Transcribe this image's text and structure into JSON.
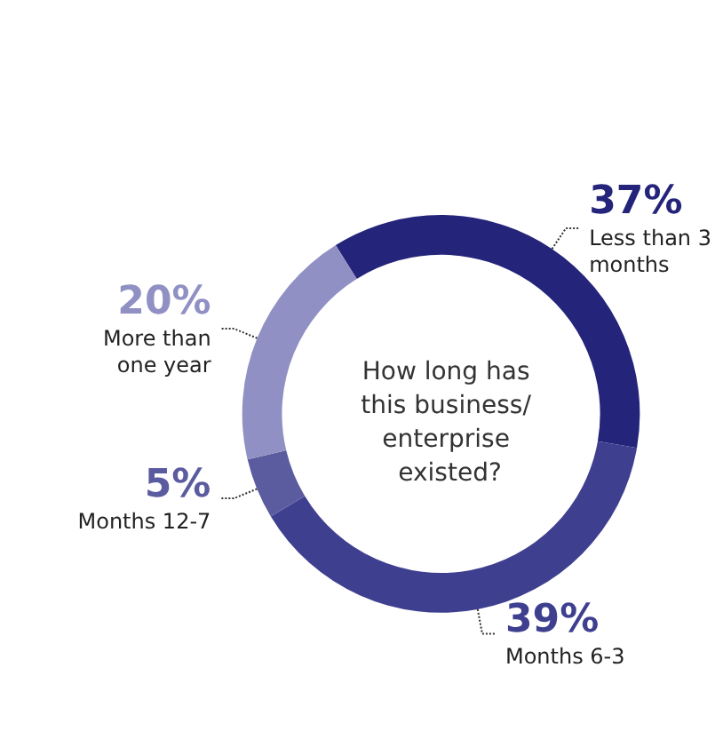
{
  "chart_data": {
    "type": "donut",
    "title": "How long has this business/ enterprise existed?",
    "categories": [
      "Less than 3 months",
      "Months 6-3",
      "Months 12-7",
      "More than one year"
    ],
    "values": [
      37,
      39,
      5,
      20
    ],
    "colors": [
      "#24247a",
      "#3f3f90",
      "#5b5ba0",
      "#9090c4"
    ],
    "value_labels": [
      "37%",
      "39%",
      "5%",
      "20%"
    ],
    "legend": false
  }
}
